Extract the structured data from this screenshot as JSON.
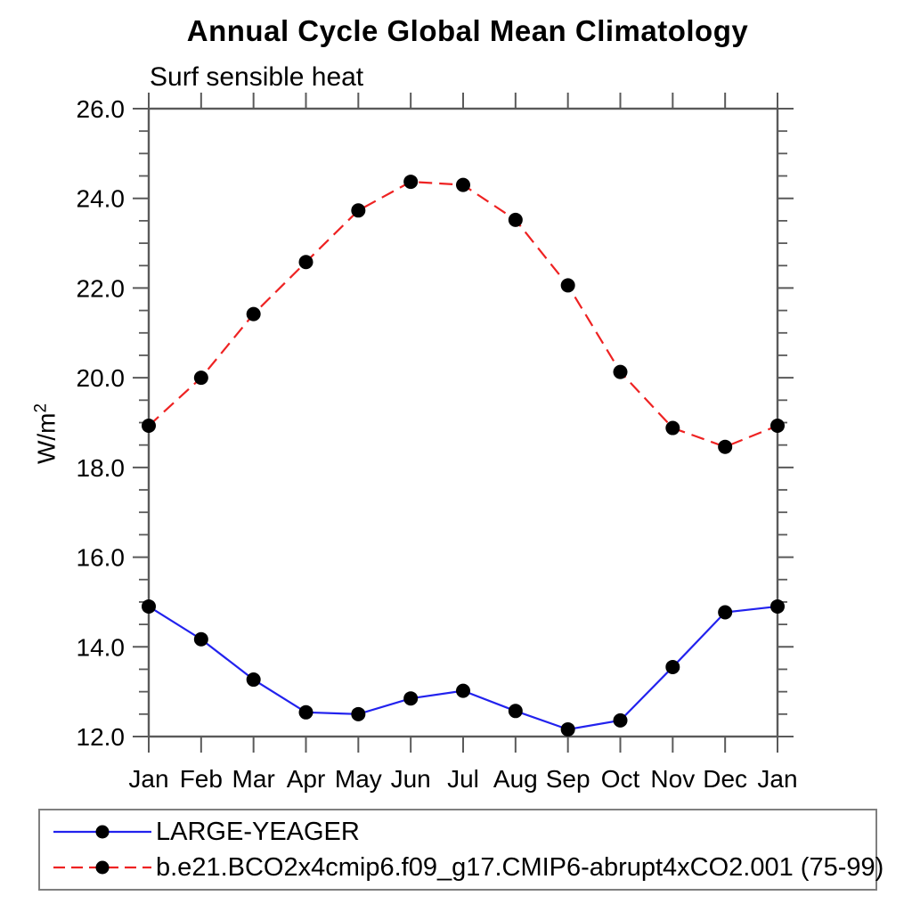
{
  "chart_data": {
    "type": "line",
    "title": "Annual Cycle Global Mean Climatology",
    "subtitle": "Surf sensible heat",
    "ylabel_base": "W/m",
    "ylabel_sup": "2",
    "x_categories": [
      "Jan",
      "Feb",
      "Mar",
      "Apr",
      "May",
      "Jun",
      "Jul",
      "Aug",
      "Sep",
      "Oct",
      "Nov",
      "Dec",
      "Jan"
    ],
    "ylim": [
      12.0,
      26.0
    ],
    "y_ticks": [
      12.0,
      14.0,
      16.0,
      18.0,
      20.0,
      22.0,
      24.0,
      26.0
    ],
    "y_tick_labels": [
      "12.0",
      "14.0",
      "16.0",
      "18.0",
      "20.0",
      "22.0",
      "24.0",
      "26.0"
    ],
    "y_minor_step": 0.5,
    "grid": false,
    "legend_position": "bottom",
    "series": [
      {
        "name": "LARGE-YEAGER",
        "color": "#2222ee",
        "style": "solid",
        "marker": "circle",
        "marker_color": "#000000",
        "values": [
          14.9,
          14.17,
          13.27,
          12.54,
          12.5,
          12.85,
          13.02,
          12.57,
          12.16,
          12.36,
          13.55,
          14.77,
          14.9
        ]
      },
      {
        "name": "b.e21.BCO2x4cmip6.f09_g17.CMIP6-abrupt4xCO2.001 (75-99)",
        "color": "#ee2222",
        "style": "dashed",
        "marker": "circle",
        "marker_color": "#000000",
        "values": [
          18.93,
          20.0,
          21.42,
          22.58,
          23.73,
          24.37,
          24.3,
          23.52,
          22.06,
          20.13,
          18.88,
          18.46,
          18.93
        ]
      }
    ]
  }
}
